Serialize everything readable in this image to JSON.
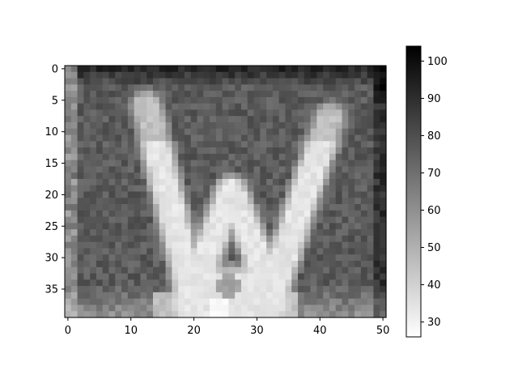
{
  "chart_data": {
    "type": "heatmap",
    "colormap": "gray_r",
    "rows": 40,
    "cols": 51,
    "x_ticks": [
      0,
      10,
      20,
      30,
      40,
      50
    ],
    "y_ticks": [
      0,
      5,
      10,
      15,
      20,
      25,
      30,
      35
    ],
    "colorbar": {
      "range": [
        26,
        104
      ],
      "ticks": [
        30,
        40,
        50,
        60,
        70,
        80,
        90,
        100
      ]
    },
    "pattern": {
      "background_level": 76,
      "top_edge_level": 92,
      "right_edge_level": 90,
      "left_edge_level": 62,
      "bottom_glow_level": 46,
      "stroke_level": 34,
      "stroke_tip_level": 45,
      "brightest_level": 26,
      "noise_amplitude": 12,
      "strokes": [
        {
          "name": "left-outer",
          "from": [
            12.5,
            6
          ],
          "to": [
            20,
            37
          ]
        },
        {
          "name": "inner-left",
          "from": [
            19,
            37
          ],
          "to": [
            26,
            19.5
          ]
        },
        {
          "name": "inner-right",
          "from": [
            26,
            19.5
          ],
          "to": [
            33,
            37
          ]
        },
        {
          "name": "right-outer",
          "from": [
            41.5,
            8
          ],
          "to": [
            32,
            37
          ]
        }
      ],
      "stroke_half_width": 1.6,
      "dark_spot": {
        "x": 25.5,
        "y": 34.5,
        "level": 55
      },
      "bright_spot": {
        "x": 24,
        "y": 38.5,
        "level": 26
      }
    }
  }
}
